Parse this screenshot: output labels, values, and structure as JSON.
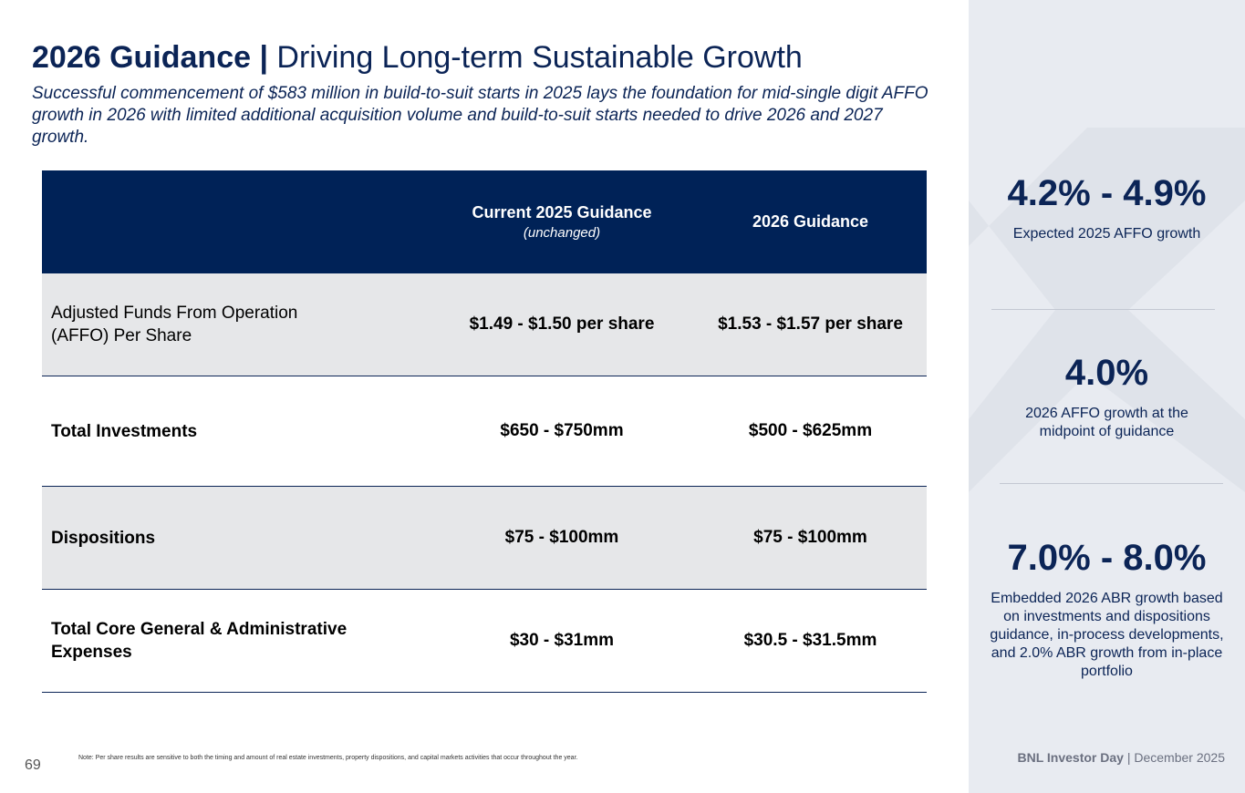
{
  "title": {
    "bold": "2026 Guidance |",
    "regular": "Driving Long-term Sustainable Growth"
  },
  "subtitle": "Successful commencement of $583 million in build-to-suit starts in 2025 lays the foundation for mid-single digit AFFO growth in 2026 with limited additional acquisition volume and build-to-suit starts needed to drive 2026 and 2027 growth.",
  "table": {
    "headers": {
      "current": "Current 2025 Guidance",
      "current_note": "(unchanged)",
      "next": "2026 Guidance"
    },
    "rows": [
      {
        "label_line1": "Adjusted Funds From Operation",
        "label_line2": "(AFFO) Per Share",
        "current": "$1.49 - $1.50 per share",
        "next": "$1.53 - $1.57 per share"
      },
      {
        "label": "Total Investments",
        "current": "$650 - $750mm",
        "next": "$500 - $625mm"
      },
      {
        "label": "Dispositions",
        "current": "$75 - $100mm",
        "next": "$75 - $100mm"
      },
      {
        "label_line1": "Total Core General & Administrative",
        "label_line2": "Expenses",
        "current": "$30 - $31mm",
        "next": "$30.5 - $31.5mm"
      }
    ]
  },
  "sidebar": {
    "stats": [
      {
        "value": "4.2% - 4.9%",
        "desc_lines": [
          "Expected 2025 AFFO growth"
        ]
      },
      {
        "value": "4.0%",
        "desc_lines": [
          "2026 AFFO growth at the",
          "midpoint of guidance"
        ]
      },
      {
        "value": "7.0% - 8.0%",
        "desc_lines": [
          "Embedded 2026 ABR growth based",
          "on investments and dispositions",
          "guidance, in-process developments,",
          "and 2.0% ABR growth from in-place",
          "portfolio"
        ]
      }
    ]
  },
  "footer": {
    "page_number": "69",
    "note": "Note: Per share results are sensitive to both the timing and amount of real estate investments, property dispositions, and capital markets activities that occur throughout the year.",
    "brand": "BNL Investor Day",
    "separator": " | ",
    "date": "December 2025"
  },
  "colors": {
    "navy": "#002257",
    "title_navy": "#0b2456",
    "row_shade": "#e6e7e9",
    "sidebar_bg": "#e8ebf1"
  }
}
